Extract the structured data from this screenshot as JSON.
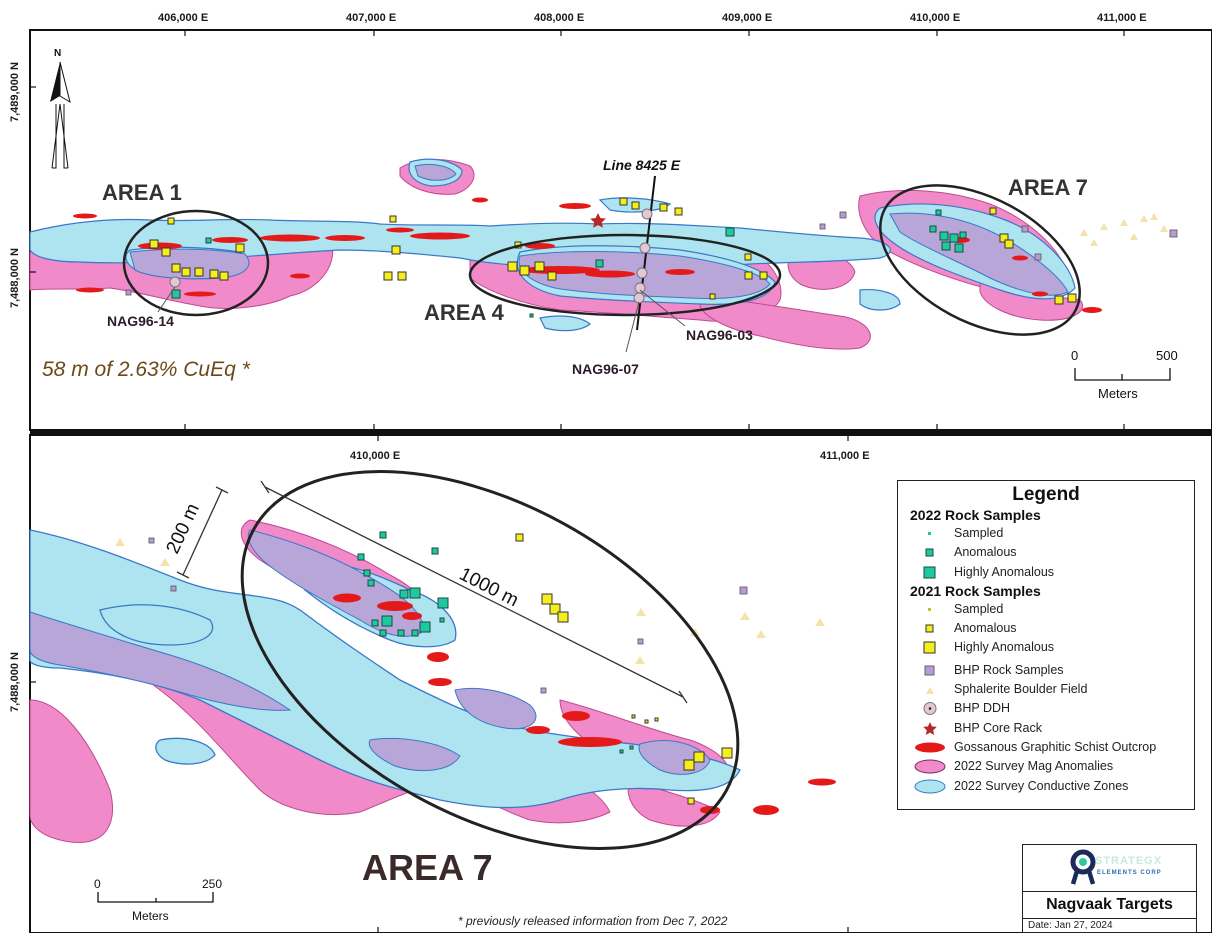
{
  "top_map": {
    "eastings": [
      "406,000 E",
      "407,000 E",
      "408,000 E",
      "409,000 E",
      "410,000 E",
      "411,000 E"
    ],
    "northings": [
      "7,489,000 N",
      "7,488,000 N"
    ],
    "north_arrow": "N",
    "areas": {
      "area1": "AREA 1",
      "area4": "AREA 4",
      "area7": "AREA 7"
    },
    "line_label": "Line 8425 E",
    "drillholes": {
      "nag96_14": "NAG96-14",
      "nag96_03": "NAG96-03",
      "nag96_07": "NAG96-07"
    },
    "intercept": "58 m of 2.63% CuEq *",
    "scale": {
      "zero": "0",
      "max": "500",
      "units": "Meters"
    }
  },
  "bottom_map": {
    "eastings": [
      "410,000 E",
      "411,000 E"
    ],
    "northing": "7,488,000 N",
    "area_label": "AREA 7",
    "width_label": "200 m",
    "length_label": "1000 m",
    "scale": {
      "zero": "0",
      "max": "250",
      "units": "Meters"
    },
    "footnote": "* previously released information from Dec 7, 2022"
  },
  "legend": {
    "title": "Legend",
    "group_2022": "2022 Rock Samples",
    "items_2022": [
      "Sampled",
      "Anomalous",
      "Highly Anomalous"
    ],
    "group_2021": "2021 Rock Samples",
    "items_2021": [
      "Sampled",
      "Anomalous",
      "Highly Anomalous"
    ],
    "items_other": [
      "BHP Rock Samples",
      "Sphalerite Boulder Field",
      "BHP DDH",
      "BHP Core Rack",
      "Gossanous Graphitic Schist Outcrop",
      "2022 Survey Mag Anomalies",
      "2022 Survey Conductive Zones"
    ]
  },
  "title_block": {
    "logo_text": "STRATEGX",
    "logo_sub": "ELEMENTS CORP",
    "title": "Nagvaak Targets",
    "date": "Date:  Jan 27, 2024"
  },
  "colors": {
    "mag_fill": "#f08ac8",
    "conductive_fill": "#aee4f0",
    "conductive_stroke": "#3a78c8",
    "overlap_fill": "#b9a6d8",
    "outcrop": "#e41a1a",
    "sample_2021": "#f5ee1a",
    "sample_2022": "#1ec9a0",
    "bhp_sample": "#b99ad8",
    "boulder": "#f3e3a8",
    "core_rack": "#b82828"
  }
}
